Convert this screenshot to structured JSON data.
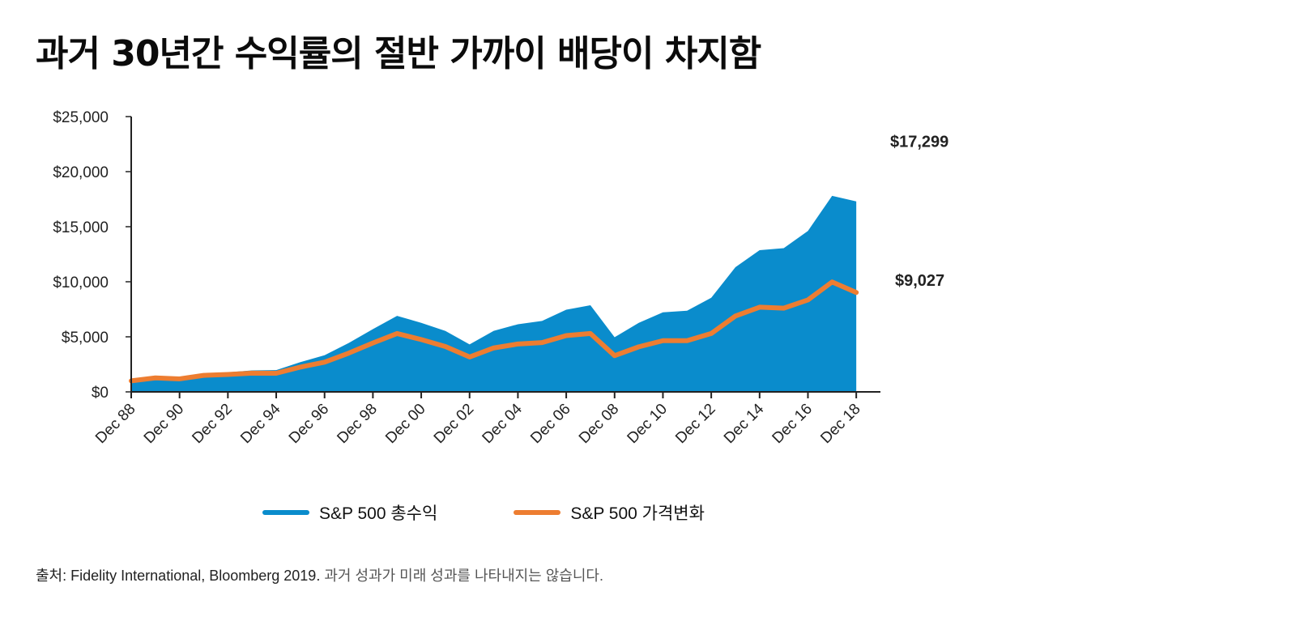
{
  "title": "과거 30년간 수익률의 절반 가까이 배당이 차지함",
  "legend": [
    {
      "name": "S&P 500 총수익",
      "color": "#0a8ccc"
    },
    {
      "name": "S&P 500 가격변화",
      "color": "#ed7d31"
    }
  ],
  "source": {
    "prefix": "출처:",
    "text": "Fidelity International, Bloomberg 2019.",
    "note": "과거 성과가 미래 성과를 나타내지는 않습니다."
  },
  "chart_data": {
    "type": "area",
    "title": "과거 30년간 수익률의 절반 가까이 배당이 차지함",
    "xlabel": "",
    "ylabel": "",
    "ylim": [
      0,
      25000
    ],
    "xlim": [
      1988,
      2019
    ],
    "y_ticks": [
      0,
      5000,
      10000,
      15000,
      20000,
      25000
    ],
    "y_tick_labels": [
      "$0",
      "$5,000",
      "$10,000",
      "$15,000",
      "$20,000",
      "$25,000"
    ],
    "x_ticks": [
      1988,
      1990,
      1992,
      1994,
      1996,
      1998,
      2000,
      2002,
      2004,
      2006,
      2008,
      2010,
      2012,
      2014,
      2016,
      2018
    ],
    "x_tick_labels": [
      "Dec 88",
      "Dec 90",
      "Dec 92",
      "Dec 94",
      "Dec 96",
      "Dec 98",
      "Dec 00",
      "Dec 02",
      "Dec 04",
      "Dec 06",
      "Dec 08",
      "Dec 10",
      "Dec 12",
      "Dec 14",
      "Dec 16",
      "Dec 18"
    ],
    "series": [
      {
        "name": "S&P 500 총수익",
        "type": "area",
        "color": "#0a8ccc",
        "end_label": "$17,299",
        "points": [
          [
            1988,
            1000
          ],
          [
            1989,
            1300
          ],
          [
            1990,
            1260
          ],
          [
            1991,
            1640
          ],
          [
            1992,
            1770
          ],
          [
            1993,
            1950
          ],
          [
            1994,
            1980
          ],
          [
            1995,
            2700
          ],
          [
            1996,
            3330
          ],
          [
            1997,
            4440
          ],
          [
            1998,
            5700
          ],
          [
            1999,
            6900
          ],
          [
            2000,
            6270
          ],
          [
            2001,
            5530
          ],
          [
            2002,
            4310
          ],
          [
            2003,
            5540
          ],
          [
            2004,
            6140
          ],
          [
            2005,
            6440
          ],
          [
            2006,
            7460
          ],
          [
            2007,
            7870
          ],
          [
            2008,
            4960
          ],
          [
            2009,
            6270
          ],
          [
            2010,
            7220
          ],
          [
            2011,
            7370
          ],
          [
            2012,
            8550
          ],
          [
            2013,
            11320
          ],
          [
            2014,
            12870
          ],
          [
            2015,
            13050
          ],
          [
            2016,
            14610
          ],
          [
            2017,
            17800
          ],
          [
            2018,
            17299
          ]
        ]
      },
      {
        "name": "S&P 500 가격변화",
        "type": "line",
        "color": "#ed7d31",
        "end_label": "$9,027",
        "points": [
          [
            1988,
            1000
          ],
          [
            1989,
            1270
          ],
          [
            1990,
            1180
          ],
          [
            1991,
            1500
          ],
          [
            1992,
            1580
          ],
          [
            1993,
            1700
          ],
          [
            1994,
            1690
          ],
          [
            1995,
            2250
          ],
          [
            1996,
            2700
          ],
          [
            1997,
            3520
          ],
          [
            1998,
            4440
          ],
          [
            1999,
            5300
          ],
          [
            2000,
            4750
          ],
          [
            2001,
            4120
          ],
          [
            2002,
            3170
          ],
          [
            2003,
            3990
          ],
          [
            2004,
            4350
          ],
          [
            2005,
            4480
          ],
          [
            2006,
            5110
          ],
          [
            2007,
            5300
          ],
          [
            2008,
            3290
          ],
          [
            2009,
            4090
          ],
          [
            2010,
            4650
          ],
          [
            2011,
            4650
          ],
          [
            2012,
            5300
          ],
          [
            2013,
            6890
          ],
          [
            2014,
            7690
          ],
          [
            2015,
            7600
          ],
          [
            2016,
            8350
          ],
          [
            2017,
            9980
          ],
          [
            2018,
            9027
          ]
        ]
      }
    ]
  }
}
